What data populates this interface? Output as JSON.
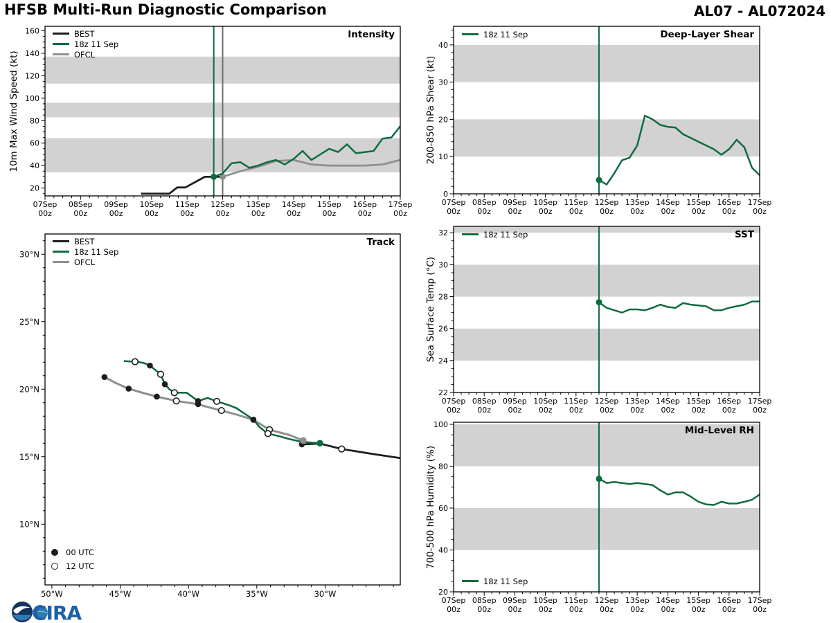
{
  "header": {
    "title": "HFSB Multi-Run Diagnostic Comparison",
    "storm_id": "AL07 - AL072024"
  },
  "colors": {
    "best": "#1c1c1c",
    "forecast_green": "#0f6b3f",
    "ofcl_gray": "#8f8f8f",
    "band_gray": "#d2d2d2",
    "init_line_gray": "#6e6e6e",
    "cira_blue": "#1d5fa8",
    "noaa_navy": "#15335e",
    "noaa_light_blue": "#2c79b5",
    "globe_blue": "#2f7ab0"
  },
  "time_axis": {
    "days": [
      7,
      8,
      9,
      10,
      11,
      12,
      13,
      14,
      15,
      16,
      17
    ],
    "month_labels": [
      "07Sep",
      "08Sep",
      "09Sep",
      "10Sep",
      "11Sep",
      "12Sep",
      "13Sep",
      "14Sep",
      "15Sep",
      "16Sep",
      "17Sep"
    ],
    "hour_label": "00z",
    "minor_step_days": 0.25
  },
  "logos": {
    "cira_text": "CIRA"
  },
  "chart_data": [
    {
      "id": "intensity",
      "type": "line",
      "title": "Intensity",
      "ylabel": "10m Max Wind Speed (kt)",
      "xlim": [
        7,
        17
      ],
      "ylim": [
        13,
        164
      ],
      "yticks": [
        20,
        40,
        60,
        80,
        100,
        120,
        140,
        160
      ],
      "y_minor_step": 5,
      "bands": [
        [
          34,
          64.5
        ],
        [
          83,
          96
        ],
        [
          113,
          137
        ]
      ],
      "init_lines": [
        {
          "t": 11.75,
          "color_key": "forecast_green"
        },
        {
          "t": 12.0,
          "color_key": "init_line_gray"
        }
      ],
      "series": [
        {
          "name": "BEST",
          "color_key": "best",
          "width": 2.8,
          "t": [
            9.7,
            10.5,
            10.72,
            10.95,
            11.5,
            12.0
          ],
          "v": [
            15,
            15,
            20.5,
            20.5,
            30,
            30
          ]
        },
        {
          "name": "OFCL",
          "color_key": "ofcl_gray",
          "width": 2.8,
          "start_dot": true,
          "t": [
            12,
            12.5,
            13,
            13.5,
            14,
            14.5,
            15,
            15.5,
            16,
            16.5,
            17
          ],
          "v": [
            30,
            35,
            39,
            44,
            45,
            41,
            40,
            40,
            40,
            41,
            45
          ]
        },
        {
          "name": "18z 11 Sep",
          "color_key": "forecast_green",
          "width": 2.5,
          "start_dot": true,
          "t0": 11.75,
          "dt": 0.25,
          "v": [
            30,
            33,
            42,
            43,
            38,
            40,
            43,
            45,
            41,
            46,
            53,
            45,
            50,
            55,
            52,
            59,
            51,
            52,
            53,
            64,
            65,
            75
          ]
        }
      ],
      "legend": [
        {
          "label": "BEST",
          "color_key": "best"
        },
        {
          "label": "18z 11 Sep",
          "color_key": "forecast_green"
        },
        {
          "label": "OFCL",
          "color_key": "ofcl_gray"
        }
      ]
    },
    {
      "id": "shear",
      "type": "line",
      "title": "Deep-Layer Shear",
      "ylabel": "200-850 hPa Shear (kt)",
      "xlim": [
        7,
        17
      ],
      "ylim": [
        0,
        45
      ],
      "yticks": [
        0,
        10,
        20,
        30,
        40
      ],
      "y_minor_step": 2,
      "bands": [
        [
          10,
          20
        ],
        [
          30,
          40
        ]
      ],
      "init_lines": [
        {
          "t": 11.75,
          "color_key": "forecast_green"
        }
      ],
      "series": [
        {
          "name": "18z 11 Sep",
          "color_key": "forecast_green",
          "width": 2.5,
          "start_dot": true,
          "t0": 11.75,
          "dt": 0.25,
          "v": [
            3.7,
            2.5,
            5.5,
            9,
            9.7,
            13,
            21,
            20,
            18.5,
            18,
            17.8,
            16,
            15,
            14,
            13,
            12,
            10.5,
            12,
            14.5,
            12.5,
            7,
            5
          ]
        }
      ],
      "legend": [
        {
          "label": "18z 11 Sep",
          "color_key": "forecast_green"
        }
      ]
    },
    {
      "id": "track",
      "type": "track",
      "title": "Track",
      "lonW_lim": [
        50.5,
        24.5
      ],
      "lat_lim": [
        5.5,
        31.5
      ],
      "lon_ticks": [
        50,
        45,
        40,
        35,
        30
      ],
      "lon_tick_labels": [
        "50°W",
        "45°W",
        "40°W",
        "35°W",
        "30°W"
      ],
      "lat_ticks": [
        30,
        25,
        20,
        15,
        10
      ],
      "lat_tick_labels": [
        "30°N",
        "25°N",
        "20°N",
        "15°N",
        "10°N"
      ],
      "tracks": [
        {
          "name": "BEST",
          "color_key": "best",
          "width": 2.8,
          "points": [
            [
              24.5,
              14.9
            ],
            [
              26.5,
              15.2
            ],
            [
              28.79,
              15.57
            ],
            [
              30.38,
              15.97
            ],
            [
              31.7,
              15.91
            ]
          ],
          "markers": [
            {
              "lon": 28.79,
              "lat": 15.57,
              "style": "open"
            },
            {
              "lon": 31.7,
              "lat": 15.91,
              "style": "filled"
            }
          ]
        },
        {
          "name": "OFCL",
          "color_key": "ofcl_gray",
          "width": 3,
          "points": [
            [
              31.6,
              16.2
            ],
            [
              32.6,
              16.6
            ],
            [
              34.07,
              17.0
            ],
            [
              35.25,
              17.73
            ],
            [
              36.4,
              18.1
            ],
            [
              37.59,
              18.42
            ],
            [
              38.5,
              18.65
            ],
            [
              39.3,
              18.89
            ],
            [
              40.89,
              19.13
            ],
            [
              42.32,
              19.45
            ],
            [
              43.35,
              19.73
            ],
            [
              44.38,
              20.04
            ],
            [
              45.3,
              20.45
            ],
            [
              46.15,
              20.9
            ]
          ],
          "markers": [
            {
              "lon": 31.6,
              "lat": 16.2,
              "style": "gray"
            },
            {
              "lon": 34.07,
              "lat": 17.0,
              "style": "open"
            },
            {
              "lon": 35.25,
              "lat": 17.73,
              "style": "filled"
            },
            {
              "lon": 37.59,
              "lat": 18.42,
              "style": "open"
            },
            {
              "lon": 39.3,
              "lat": 18.89,
              "style": "filled"
            },
            {
              "lon": 40.89,
              "lat": 19.13,
              "style": "open"
            },
            {
              "lon": 42.32,
              "lat": 19.45,
              "style": "filled"
            },
            {
              "lon": 44.38,
              "lat": 20.04,
              "style": "filled"
            },
            {
              "lon": 46.15,
              "lat": 20.9,
              "style": "filled"
            }
          ]
        },
        {
          "name": "18z 11 Sep",
          "color_key": "forecast_green",
          "width": 2.6,
          "points": [
            [
              30.38,
              16.0
            ],
            [
              31.7,
              16.1
            ],
            [
              32.6,
              16.3
            ],
            [
              33.5,
              16.55
            ],
            [
              34.19,
              16.71
            ],
            [
              34.8,
              17.2
            ],
            [
              35.25,
              17.75
            ],
            [
              35.9,
              18.2
            ],
            [
              36.5,
              18.6
            ],
            [
              37.0,
              18.8
            ],
            [
              37.93,
              19.1
            ],
            [
              38.6,
              19.35
            ],
            [
              39.3,
              19.12
            ],
            [
              40.13,
              19.74
            ],
            [
              41.03,
              19.74
            ],
            [
              41.4,
              20.0
            ],
            [
              41.73,
              20.37
            ],
            [
              42.04,
              21.11
            ],
            [
              42.82,
              21.75
            ],
            [
              43.3,
              21.95
            ],
            [
              43.91,
              22.04
            ],
            [
              44.72,
              22.08
            ]
          ],
          "markers": [
            {
              "lon": 30.38,
              "lat": 16.0,
              "style": "green"
            },
            {
              "lon": 34.19,
              "lat": 16.71,
              "style": "open"
            },
            {
              "lon": 35.25,
              "lat": 17.75,
              "style": "filled"
            },
            {
              "lon": 37.93,
              "lat": 19.1,
              "style": "open"
            },
            {
              "lon": 39.3,
              "lat": 19.12,
              "style": "filled"
            },
            {
              "lon": 41.03,
              "lat": 19.74,
              "style": "open"
            },
            {
              "lon": 41.73,
              "lat": 20.37,
              "style": "filled"
            },
            {
              "lon": 42.04,
              "lat": 21.11,
              "style": "open"
            },
            {
              "lon": 42.82,
              "lat": 21.75,
              "style": "filled"
            },
            {
              "lon": 43.91,
              "lat": 22.04,
              "style": "open"
            }
          ]
        }
      ],
      "legend": [
        {
          "label": "BEST",
          "color_key": "best"
        },
        {
          "label": "18z 11 Sep",
          "color_key": "forecast_green"
        },
        {
          "label": "OFCL",
          "color_key": "ofcl_gray"
        }
      ],
      "marker_legend": [
        {
          "label": "00 UTC",
          "style": "filled"
        },
        {
          "label": "12 UTC",
          "style": "open"
        }
      ]
    },
    {
      "id": "sst",
      "type": "line",
      "title": "SST",
      "ylabel": "Sea Surface Temp (°C)",
      "xlim": [
        7,
        17
      ],
      "ylim": [
        22,
        32.4
      ],
      "yticks": [
        22,
        24,
        26,
        28,
        30,
        32
      ],
      "y_minor_step": 0.5,
      "bands": [
        [
          24,
          26
        ],
        [
          28,
          30
        ],
        [
          32,
          32.4
        ]
      ],
      "init_lines": [
        {
          "t": 11.75,
          "color_key": "forecast_green"
        }
      ],
      "series": [
        {
          "name": "18z 11 Sep",
          "color_key": "forecast_green",
          "width": 2.5,
          "start_dot": true,
          "t0": 11.75,
          "dt": 0.25,
          "v": [
            27.65,
            27.3,
            27.15,
            27.0,
            27.2,
            27.2,
            27.15,
            27.3,
            27.5,
            27.35,
            27.3,
            27.6,
            27.5,
            27.45,
            27.4,
            27.15,
            27.15,
            27.3,
            27.4,
            27.5,
            27.7,
            27.7
          ]
        }
      ],
      "legend": [
        {
          "label": "18z 11 Sep",
          "color_key": "forecast_green"
        }
      ]
    },
    {
      "id": "rh",
      "type": "line",
      "title": "Mid-Level RH",
      "ylabel": "700-500 hPa Humidity (%)",
      "xlim": [
        7,
        17
      ],
      "ylim": [
        20,
        101
      ],
      "yticks": [
        20,
        40,
        60,
        80,
        100
      ],
      "y_minor_step": 5,
      "bands": [
        [
          40,
          60
        ],
        [
          80,
          100
        ]
      ],
      "init_lines": [
        {
          "t": 11.75,
          "color_key": "forecast_green"
        }
      ],
      "series": [
        {
          "name": "18z 11 Sep",
          "color_key": "forecast_green",
          "width": 2.5,
          "start_dot": true,
          "t0": 11.75,
          "dt": 0.25,
          "v": [
            74,
            72,
            72.5,
            72,
            71.5,
            72,
            71.5,
            71,
            68.5,
            66.5,
            67.5,
            67.5,
            65.5,
            63,
            61.8,
            61.5,
            63,
            62.2,
            62.2,
            63,
            64,
            66.5
          ]
        }
      ],
      "legend": [
        {
          "label": "18z 11 Sep",
          "color_key": "forecast_green"
        }
      ]
    }
  ]
}
